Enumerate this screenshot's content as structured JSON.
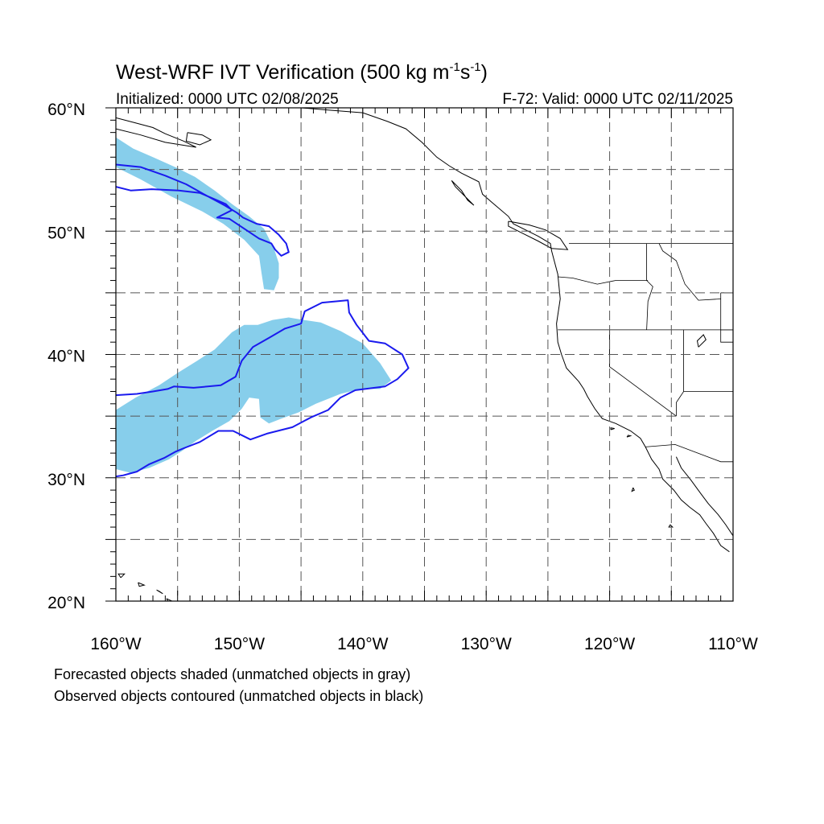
{
  "title_main": "West-WRF IVT Verification (500 kg m",
  "title_exp1": "-1",
  "title_mid": "s",
  "title_exp2": "-1",
  "title_end": ")",
  "subtitle_left": "Initialized: 0000 UTC 02/08/2025",
  "subtitle_right": "F-72: Valid: 0000 UTC 02/11/2025",
  "footnotes": [
    "Forecasted objects shaded (unmatched objects in gray)",
    "Observed objects contoured (unmatched objects in black)"
  ],
  "colors": {
    "forecast_fill": "#87ceeb",
    "observed_contour": "#1a1aee",
    "coastline": "#000000",
    "grid": "#555555"
  },
  "map": {
    "projection": "cylindrical-equidistant",
    "lon_range": [
      -160,
      -110
    ],
    "lat_range": [
      20,
      60
    ],
    "lon_ticks": [
      {
        "lon": -160,
        "label": "160°W"
      },
      {
        "lon": -150,
        "label": "150°W"
      },
      {
        "lon": -140,
        "label": "140°W"
      },
      {
        "lon": -130,
        "label": "130°W"
      },
      {
        "lon": -120,
        "label": "120°W"
      },
      {
        "lon": -110,
        "label": "110°W"
      }
    ],
    "lat_ticks": [
      {
        "lat": 60,
        "label": "60°N"
      },
      {
        "lat": 50,
        "label": "50°N"
      },
      {
        "lat": 40,
        "label": "40°N"
      },
      {
        "lat": 30,
        "label": "30°N"
      },
      {
        "lat": 20,
        "label": "20°N"
      }
    ],
    "grid_lons": [
      -155,
      -150,
      -145,
      -140,
      -135,
      -130,
      -125,
      -120,
      -115
    ],
    "grid_lats": [
      55,
      50,
      45,
      40,
      35,
      30,
      25
    ],
    "grid_dashed": true
  },
  "forecast_objects": [
    {
      "name": "northern-forecast-object",
      "outline": [
        [
          -160,
          57.6
        ],
        [
          -158.6,
          56.7
        ],
        [
          -157,
          56
        ],
        [
          -155.2,
          55.2
        ],
        [
          -153.6,
          54.4
        ],
        [
          -152,
          53.3
        ],
        [
          -150.6,
          52.2
        ],
        [
          -149.2,
          51.2
        ],
        [
          -148,
          50.2
        ],
        [
          -147.2,
          48.6
        ],
        [
          -146.8,
          47.4
        ],
        [
          -146.8,
          46.2
        ],
        [
          -147.2,
          45.2
        ],
        [
          -148,
          45.3
        ],
        [
          -148.2,
          46.6
        ],
        [
          -148.4,
          48
        ],
        [
          -149.6,
          49.3
        ],
        [
          -151.3,
          50.6
        ],
        [
          -153,
          51.6
        ],
        [
          -155.5,
          52.8
        ],
        [
          -158,
          54.2
        ],
        [
          -160,
          55.2
        ]
      ]
    },
    {
      "name": "southern-forecast-object",
      "outline": [
        [
          -160,
          35.5
        ],
        [
          -158.4,
          36.5
        ],
        [
          -156.5,
          37.5
        ],
        [
          -155,
          38.5
        ],
        [
          -153.4,
          39.5
        ],
        [
          -152,
          40.4
        ],
        [
          -150.6,
          41.8
        ],
        [
          -149.6,
          42.4
        ],
        [
          -148.5,
          42.4
        ],
        [
          -147.3,
          42.8
        ],
        [
          -146,
          43
        ],
        [
          -144.8,
          42.8
        ],
        [
          -143.4,
          42.6
        ],
        [
          -141.8,
          41.9
        ],
        [
          -140,
          40.9
        ],
        [
          -138.6,
          39.3
        ],
        [
          -137.7,
          37.9
        ],
        [
          -138.6,
          37.2
        ],
        [
          -140.2,
          37.2
        ],
        [
          -141.8,
          36.8
        ],
        [
          -143.8,
          36
        ],
        [
          -145.2,
          35.3
        ],
        [
          -146.6,
          34.8
        ],
        [
          -147.6,
          34.4
        ],
        [
          -148.3,
          34.9
        ],
        [
          -148.4,
          36.4
        ],
        [
          -149.2,
          36.5
        ],
        [
          -149.8,
          35.6
        ],
        [
          -150.8,
          34.6
        ],
        [
          -152.2,
          33.8
        ],
        [
          -153.5,
          33
        ],
        [
          -154.6,
          32.2
        ],
        [
          -155.7,
          31.5
        ],
        [
          -157.3,
          30.8
        ],
        [
          -158.8,
          30.4
        ],
        [
          -160,
          30.7
        ]
      ]
    }
  ],
  "observed_objects": [
    {
      "name": "northern-observed-contour",
      "outline": [
        [
          -160,
          55.4
        ],
        [
          -158,
          55.2
        ],
        [
          -156,
          54.5
        ],
        [
          -154.3,
          53.8
        ],
        [
          -152.7,
          52.9
        ],
        [
          -151.2,
          52.1
        ],
        [
          -150.2,
          51.5
        ],
        [
          -149.7,
          51.1
        ],
        [
          -148.6,
          50.6
        ],
        [
          -147.6,
          50.4
        ],
        [
          -146.8,
          49.7
        ],
        [
          -146.2,
          49
        ],
        [
          -146,
          48.3
        ],
        [
          -146.6,
          48
        ],
        [
          -147.1,
          48.5
        ],
        [
          -147.4,
          49
        ],
        [
          -148.4,
          49.4
        ],
        [
          -149.6,
          50.2
        ],
        [
          -150.8,
          51
        ],
        [
          -151.8,
          51.1
        ],
        [
          -150.6,
          51.7
        ],
        [
          -151.1,
          52.2
        ],
        [
          -153.2,
          53.1
        ],
        [
          -154.9,
          53.3
        ],
        [
          -157.1,
          53.4
        ],
        [
          -158.8,
          53.3
        ],
        [
          -160,
          53.6
        ]
      ]
    },
    {
      "name": "southern-observed-contour",
      "outline": [
        [
          -160,
          36.7
        ],
        [
          -158.3,
          36.8
        ],
        [
          -157,
          37
        ],
        [
          -155.8,
          37.2
        ],
        [
          -155.3,
          37.4
        ],
        [
          -153.7,
          37.3
        ],
        [
          -151.5,
          37.5
        ],
        [
          -150.3,
          38.2
        ],
        [
          -149.8,
          39.5
        ],
        [
          -148.9,
          40.6
        ],
        [
          -147.5,
          41.4
        ],
        [
          -146.3,
          42.1
        ],
        [
          -145,
          42.5
        ],
        [
          -144.7,
          43.5
        ],
        [
          -143.3,
          44.2
        ],
        [
          -141.2,
          44.4
        ],
        [
          -141.1,
          43.4
        ],
        [
          -140.5,
          42.4
        ],
        [
          -139.5,
          41.1
        ],
        [
          -138.2,
          40.9
        ],
        [
          -136.8,
          40
        ],
        [
          -136.3,
          38.9
        ],
        [
          -137.2,
          38
        ],
        [
          -138.2,
          37.4
        ],
        [
          -140.6,
          37.1
        ],
        [
          -141.8,
          36.5
        ],
        [
          -142.8,
          35.5
        ],
        [
          -144.2,
          34.9
        ],
        [
          -145.7,
          34.1
        ],
        [
          -147.7,
          33.6
        ],
        [
          -149.1,
          33.1
        ],
        [
          -150.5,
          33.8
        ],
        [
          -151.7,
          33.8
        ],
        [
          -153.2,
          32.9
        ],
        [
          -154.5,
          32.4
        ],
        [
          -155.2,
          32.1
        ],
        [
          -156.1,
          31.6
        ],
        [
          -157.3,
          31.1
        ],
        [
          -158.3,
          30.5
        ],
        [
          -159.4,
          30.2
        ],
        [
          -160,
          30.1
        ]
      ]
    }
  ],
  "coastlines": [
    [
      [
        -151.5,
        60
      ],
      [
        -147,
        60
      ],
      [
        -145,
        60
      ],
      [
        -142.5,
        59.8
      ],
      [
        -140,
        59.6
      ],
      [
        -138,
        58.9
      ],
      [
        -136.5,
        58.3
      ],
      [
        -135.2,
        57.2
      ],
      [
        -134,
        56
      ],
      [
        -133,
        55.3
      ],
      [
        -132,
        54.7
      ],
      [
        -130.6,
        54
      ],
      [
        -130.3,
        53
      ],
      [
        -129.5,
        52.3
      ],
      [
        -128.2,
        51.2
      ],
      [
        -127.8,
        50.6
      ],
      [
        -125.8,
        49.6
      ],
      [
        -124.8,
        49
      ],
      [
        -124.7,
        48.4
      ],
      [
        -124.2,
        46.5
      ],
      [
        -124,
        44.5
      ],
      [
        -124.3,
        42.5
      ],
      [
        -124.2,
        41
      ],
      [
        -123.9,
        40
      ],
      [
        -123.5,
        38.9
      ],
      [
        -122.5,
        37.8
      ],
      [
        -122.1,
        37.2
      ],
      [
        -121.8,
        36.6
      ],
      [
        -121.2,
        35.6
      ],
      [
        -120.6,
        34.8
      ],
      [
        -119.5,
        34.4
      ],
      [
        -118.3,
        33.8
      ],
      [
        -117.5,
        33.2
      ],
      [
        -117.1,
        32.5
      ],
      [
        -116.6,
        31.5
      ],
      [
        -116,
        30.7
      ],
      [
        -115.7,
        29.9
      ],
      [
        -114.8,
        29
      ],
      [
        -114.2,
        28.2
      ],
      [
        -113.5,
        27.6
      ],
      [
        -112.7,
        27
      ],
      [
        -112.2,
        26.3
      ],
      [
        -111.6,
        25.5
      ],
      [
        -111,
        24.5
      ],
      [
        -110.3,
        24
      ]
    ],
    [
      [
        -114.6,
        31.7
      ],
      [
        -114.2,
        30.8
      ],
      [
        -113.4,
        29.8
      ],
      [
        -112.6,
        28.7
      ],
      [
        -112,
        27.9
      ],
      [
        -111.2,
        27
      ],
      [
        -110.6,
        26.2
      ],
      [
        -110,
        25.3
      ]
    ],
    [
      [
        -132.8,
        54.1
      ],
      [
        -132,
        53.3
      ],
      [
        -131.5,
        52.5
      ],
      [
        -131,
        52.1
      ],
      [
        -131.6,
        52.7
      ],
      [
        -132.5,
        53.6
      ],
      [
        -132.8,
        54.1
      ]
    ],
    [
      [
        -128.2,
        50.8
      ],
      [
        -126.5,
        50.5
      ],
      [
        -125.2,
        50.1
      ],
      [
        -124,
        49.4
      ],
      [
        -123.4,
        48.5
      ],
      [
        -124.7,
        48.6
      ],
      [
        -125.8,
        49.2
      ],
      [
        -127,
        49.8
      ],
      [
        -128.2,
        50.4
      ],
      [
        -128.2,
        50.8
      ]
    ],
    [
      [
        -160,
        59.2
      ],
      [
        -158.5,
        58.8
      ],
      [
        -157,
        58.4
      ],
      [
        -156,
        57.9
      ],
      [
        -154.5,
        57.3
      ],
      [
        -153.5,
        56.8
      ],
      [
        -156,
        57.2
      ],
      [
        -158,
        57.8
      ],
      [
        -160,
        58.3
      ]
    ],
    [
      [
        -154.2,
        58
      ],
      [
        -153,
        57.8
      ],
      [
        -152.3,
        57.4
      ],
      [
        -153.2,
        57
      ],
      [
        -154.3,
        57.3
      ],
      [
        -154.2,
        58
      ]
    ],
    [
      [
        -159.6,
        21.9
      ],
      [
        -159.3,
        22.2
      ],
      [
        -159.8,
        22.2
      ],
      [
        -159.6,
        21.9
      ]
    ],
    [
      [
        -158.2,
        21.5
      ],
      [
        -157.7,
        21.3
      ],
      [
        -158.1,
        21.2
      ],
      [
        -158.2,
        21.5
      ]
    ],
    [
      [
        -156.7,
        20.9
      ],
      [
        -156.2,
        20.6
      ],
      [
        -156.5,
        20.8
      ],
      [
        -156.7,
        20.9
      ]
    ],
    [
      [
        -155.9,
        20.2
      ],
      [
        -155,
        19.8
      ],
      [
        -155.5,
        19.5
      ],
      [
        -155.9,
        20.2
      ]
    ],
    [
      [
        -119.9,
        33.9
      ],
      [
        -119.6,
        34
      ],
      [
        -119.9,
        34.05
      ],
      [
        -119.9,
        33.9
      ]
    ],
    [
      [
        -118.6,
        33.3
      ],
      [
        -118.3,
        33.4
      ],
      [
        -118.5,
        33.45
      ],
      [
        -118.6,
        33.3
      ]
    ],
    [
      [
        -112.8,
        40.6
      ],
      [
        -112.2,
        41.2
      ],
      [
        -112.4,
        41.6
      ],
      [
        -112.9,
        41.1
      ],
      [
        -112.8,
        40.6
      ]
    ],
    [
      [
        -118.1,
        29.2
      ],
      [
        -118.2,
        28.9
      ],
      [
        -118.0,
        29.0
      ],
      [
        -118.1,
        29.2
      ]
    ],
    [
      [
        -115.1,
        26.2
      ],
      [
        -114.9,
        26.0
      ],
      [
        -115.2,
        26.0
      ],
      [
        -115.1,
        26.2
      ]
    ]
  ],
  "borders": [
    [
      [
        -123.3,
        49
      ],
      [
        -110,
        49
      ]
    ],
    [
      [
        -124.2,
        46.3
      ],
      [
        -123,
        46.2
      ],
      [
        -121,
        45.7
      ],
      [
        -119.5,
        46
      ],
      [
        -116.9,
        46
      ]
    ],
    [
      [
        -124.2,
        42
      ],
      [
        -110,
        42
      ]
    ],
    [
      [
        -120,
        42
      ],
      [
        -120,
        39
      ],
      [
        -114.6,
        35
      ]
    ],
    [
      [
        -117,
        49
      ],
      [
        -117,
        46
      ],
      [
        -116.5,
        45.5
      ],
      [
        -116.9,
        44.3
      ],
      [
        -117,
        42
      ]
    ],
    [
      [
        -114,
        42
      ],
      [
        -114,
        37
      ],
      [
        -114.6,
        36.1
      ],
      [
        -114.6,
        35
      ]
    ],
    [
      [
        -114,
        37
      ],
      [
        -110,
        37
      ]
    ],
    [
      [
        -111,
        42
      ],
      [
        -111,
        41
      ],
      [
        -110,
        41
      ]
    ],
    [
      [
        -117.1,
        32.5
      ],
      [
        -114.7,
        32.7
      ],
      [
        -111,
        31.3
      ],
      [
        -110,
        31.3
      ]
    ],
    [
      [
        -111,
        45
      ],
      [
        -110,
        45
      ]
    ],
    [
      [
        -116,
        49
      ],
      [
        -115.7,
        48.4
      ],
      [
        -114.6,
        47.6
      ],
      [
        -113.9,
        45.7
      ],
      [
        -112.8,
        44.4
      ],
      [
        -111,
        44.5
      ]
    ],
    [
      [
        -120,
        39
      ],
      [
        -120,
        42
      ]
    ],
    [
      [
        -110,
        42
      ],
      [
        -111,
        42
      ],
      [
        -111,
        45
      ]
    ]
  ]
}
